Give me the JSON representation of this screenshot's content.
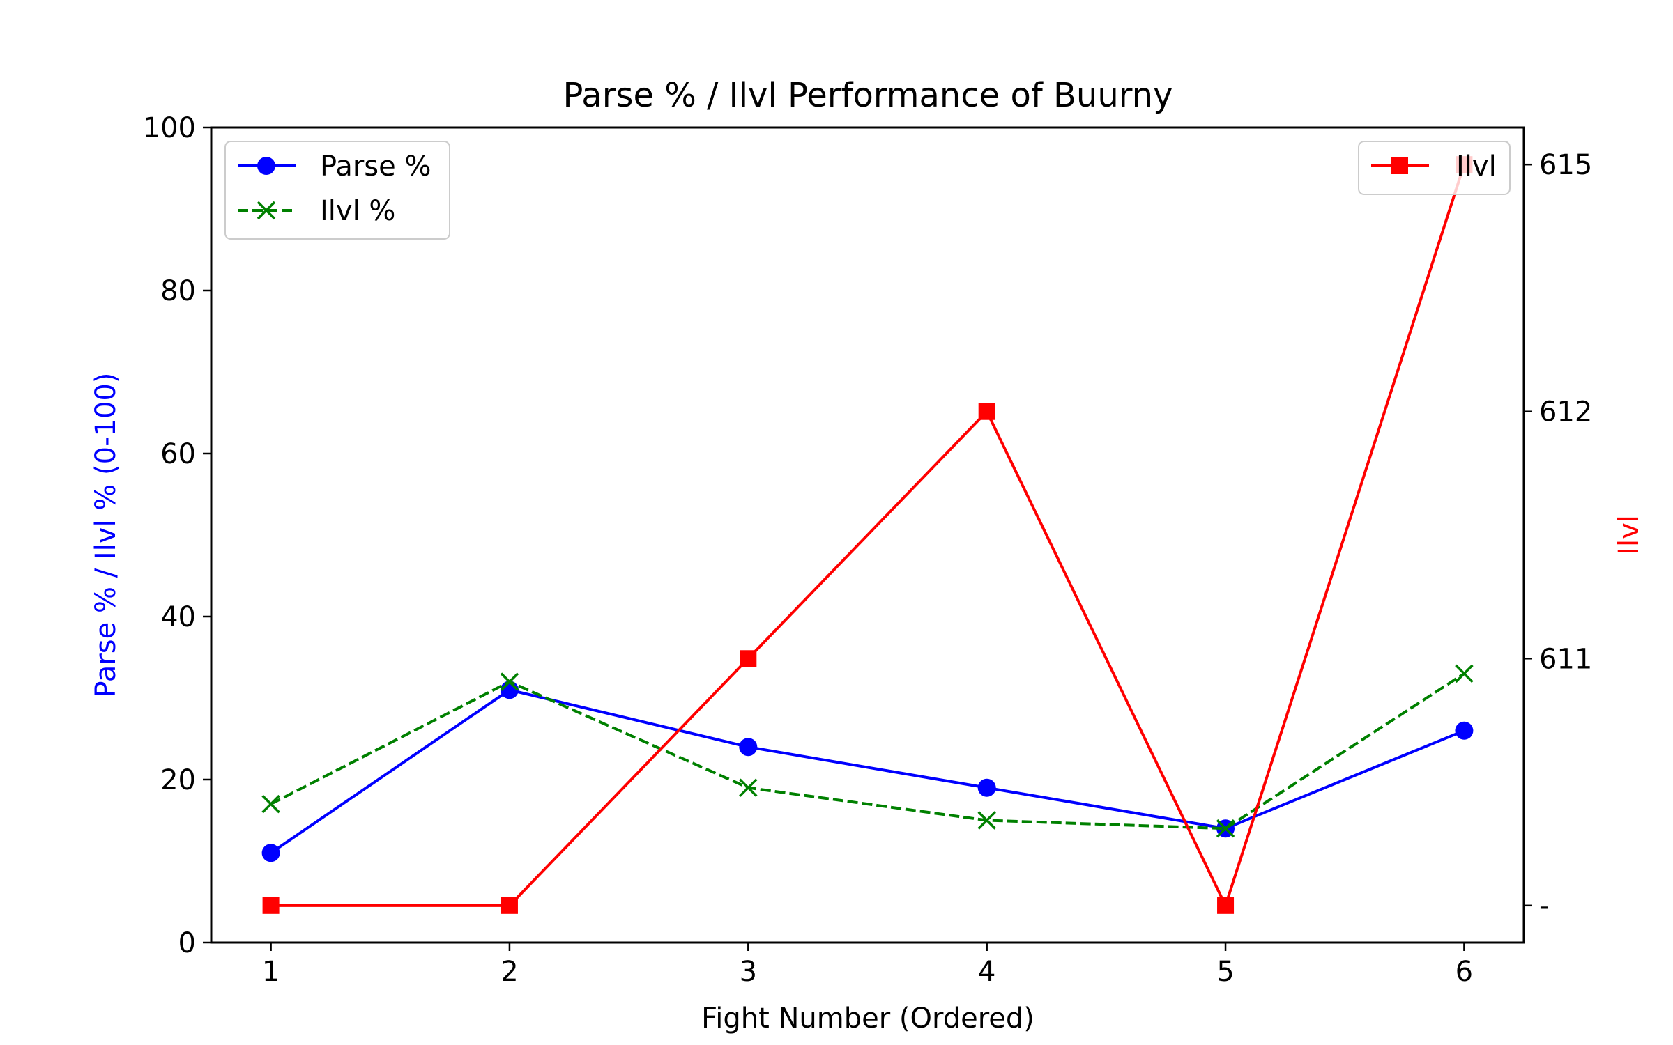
{
  "chart_data": {
    "type": "line",
    "title": "Parse % / Ilvl Performance of Buurny",
    "xlabel": "Fight Number (Ordered)",
    "ylabel": "Parse % / Ilvl % (0-100)",
    "ylabel_right": "Ilvl",
    "x": [
      1,
      2,
      3,
      4,
      5,
      6
    ],
    "xlim": [
      0.75,
      6.25
    ],
    "ylim": [
      0,
      100
    ],
    "yticks": [
      0,
      20,
      40,
      60,
      80,
      100
    ],
    "grid": false,
    "series": [
      {
        "name": "Parse %",
        "axis": "left",
        "color": "#0000ff",
        "style": "solid",
        "marker": "circle",
        "values": [
          11,
          31,
          24,
          19,
          14,
          26
        ]
      },
      {
        "name": "Ilvl %",
        "axis": "left",
        "color": "#008000",
        "style": "dashed",
        "marker": "x",
        "values": [
          17,
          32,
          19,
          15,
          14,
          33
        ]
      },
      {
        "name": "Ilvl",
        "axis": "right",
        "color": "#ff0000",
        "style": "solid",
        "marker": "square",
        "values": [
          null,
          null,
          611,
          612,
          null,
          615
        ]
      }
    ],
    "right_axis": {
      "ticks": [
        {
          "label": "-",
          "level": 0
        },
        {
          "label": "611",
          "level": 1
        },
        {
          "label": "612",
          "level": 2
        },
        {
          "label": "615",
          "level": 3
        }
      ],
      "series_levels": [
        0,
        0,
        1,
        2,
        0,
        3
      ],
      "level_range": [
        -0.15,
        3.15
      ]
    },
    "legend_left_position": "upper-left",
    "legend_right_position": "upper-right"
  }
}
